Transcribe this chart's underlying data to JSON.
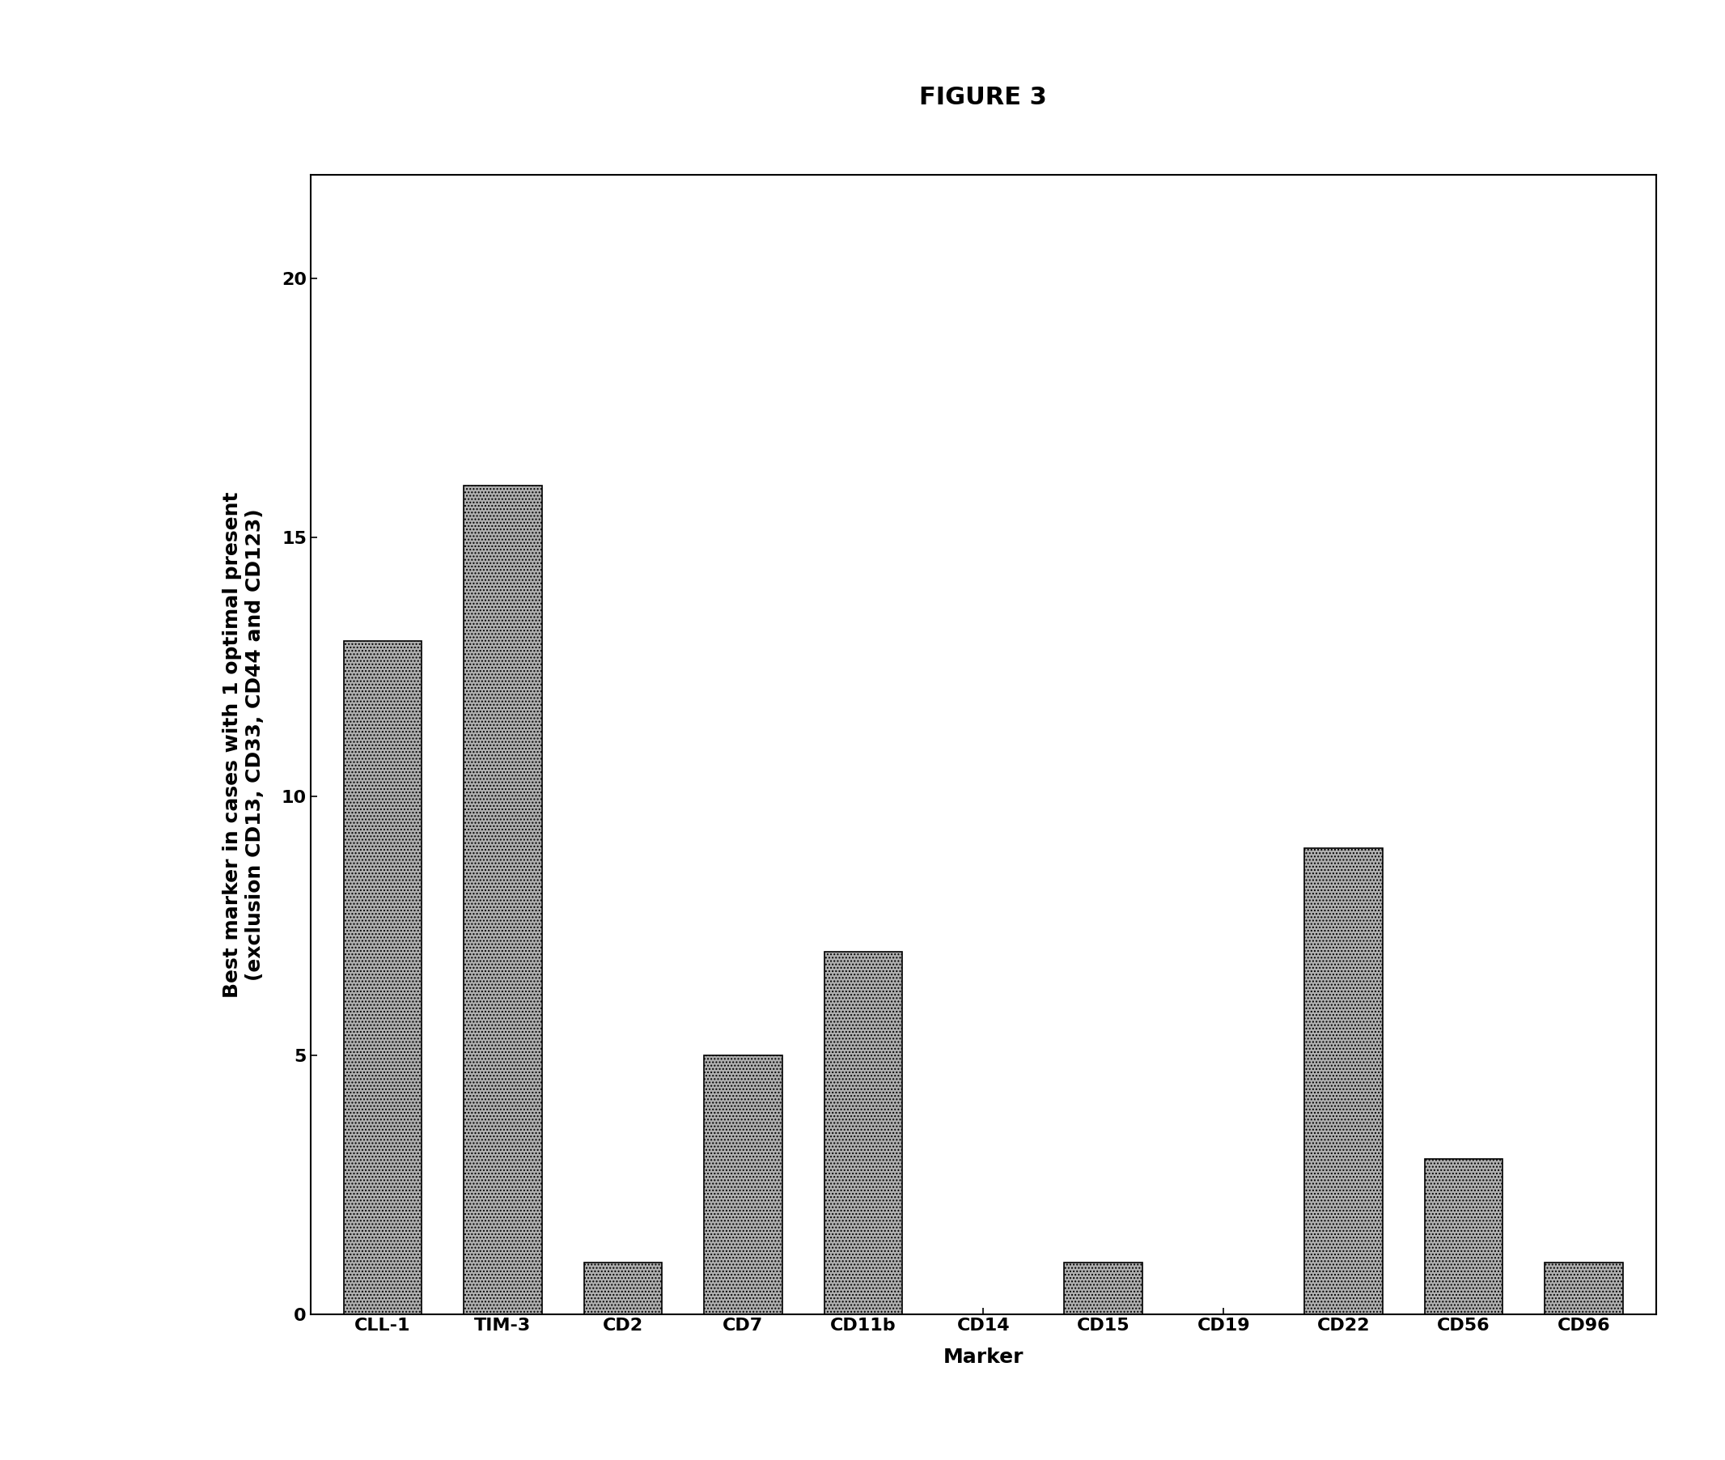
{
  "title": "FIGURE 3",
  "xlabel": "Marker",
  "ylabel": "Best marker in cases with 1 optimal present\n(exclusion CD13, CD33, CD44 and CD123)",
  "categories": [
    "CLL-1",
    "TIM-3",
    "CD2",
    "CD7",
    "CD11b",
    "CD14",
    "CD15",
    "CD19",
    "CD22",
    "CD56",
    "CD96"
  ],
  "values": [
    13,
    16,
    1,
    5,
    7,
    0,
    1,
    0,
    9,
    3,
    1
  ],
  "ylim": [
    0,
    22
  ],
  "yticks": [
    0,
    5,
    10,
    15,
    20
  ],
  "bar_color": "#a0a0a0",
  "background_color": "#ffffff",
  "title_fontsize": 22,
  "label_fontsize": 18,
  "tick_fontsize": 16
}
